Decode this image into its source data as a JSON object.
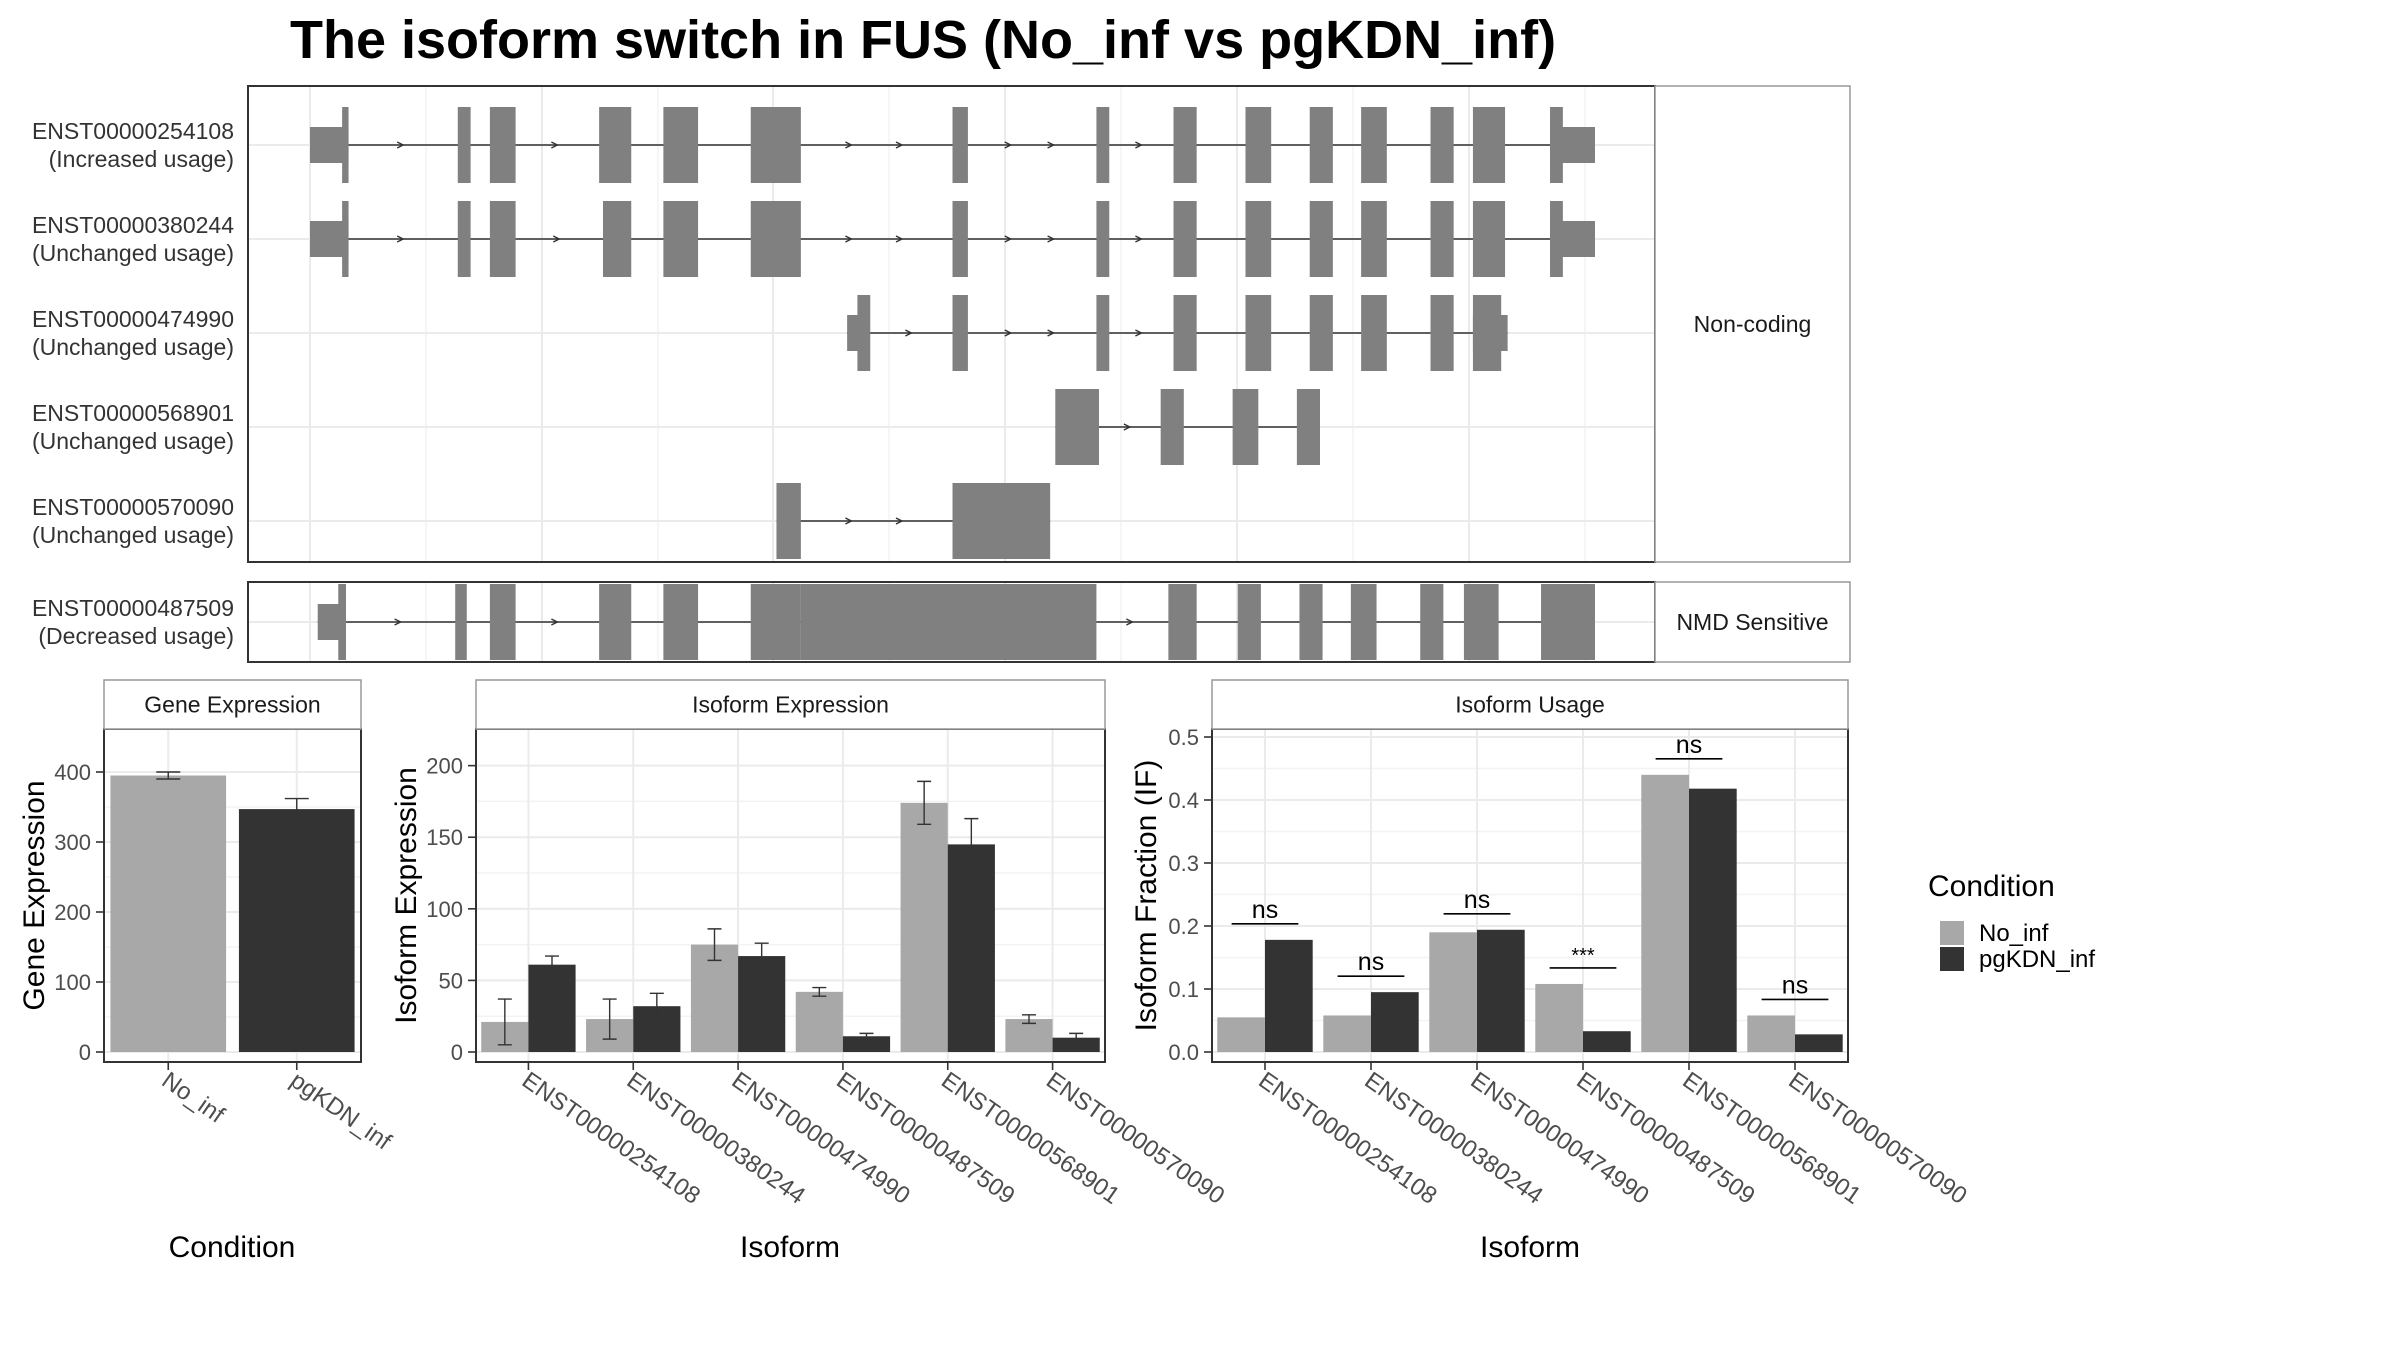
{
  "title": "The isoform switch in FUS (No_inf vs pgKDN_inf)",
  "colors": {
    "no_inf": "#a8a8a8",
    "pgkdn_inf": "#333333",
    "exon": "#808080",
    "grid": "#ebebeb",
    "panel_border": "#333333",
    "strip_border": "#999999"
  },
  "structure": {
    "x_range": [
      0,
      1000
    ],
    "groups": [
      {
        "label": "Non-coding",
        "transcripts": [
          {
            "id": "ENST00000254108",
            "usage": "(Increased usage)",
            "exons": [
              [
                0,
                30,
                "utr"
              ],
              [
                25,
                30,
                "cds"
              ],
              [
                115,
                125,
                "cds"
              ],
              [
                140,
                160,
                "cds"
              ],
              [
                225,
                250,
                "cds"
              ],
              [
                275,
                302,
                "cds"
              ],
              [
                343,
                382,
                "cds"
              ],
              [
                500,
                512,
                "cds"
              ],
              [
                612,
                622,
                "cds"
              ],
              [
                672,
                690,
                "cds"
              ],
              [
                728,
                748,
                "cds"
              ],
              [
                778,
                796,
                "cds"
              ],
              [
                818,
                838,
                "cds"
              ],
              [
                872,
                890,
                "cds"
              ],
              [
                905,
                930,
                "cds"
              ],
              [
                965,
                975,
                "cds"
              ],
              [
                965,
                1000,
                "utr"
              ]
            ]
          },
          {
            "id": "ENST00000380244",
            "usage": "(Unchanged usage)",
            "exons": [
              [
                0,
                30,
                "utr"
              ],
              [
                25,
                30,
                "cds"
              ],
              [
                115,
                125,
                "cds"
              ],
              [
                140,
                160,
                "cds"
              ],
              [
                228,
                250,
                "cds"
              ],
              [
                275,
                302,
                "cds"
              ],
              [
                343,
                382,
                "cds"
              ],
              [
                500,
                512,
                "cds"
              ],
              [
                612,
                622,
                "cds"
              ],
              [
                672,
                690,
                "cds"
              ],
              [
                728,
                748,
                "cds"
              ],
              [
                778,
                796,
                "cds"
              ],
              [
                818,
                838,
                "cds"
              ],
              [
                872,
                890,
                "cds"
              ],
              [
                905,
                930,
                "cds"
              ],
              [
                965,
                975,
                "cds"
              ],
              [
                965,
                1000,
                "utr"
              ]
            ]
          },
          {
            "id": "ENST00000474990",
            "usage": "(Unchanged usage)",
            "exons": [
              [
                418,
                430,
                "utr"
              ],
              [
                426,
                436,
                "cds"
              ],
              [
                500,
                512,
                "cds"
              ],
              [
                612,
                622,
                "cds"
              ],
              [
                672,
                690,
                "cds"
              ],
              [
                728,
                748,
                "cds"
              ],
              [
                778,
                796,
                "cds"
              ],
              [
                818,
                838,
                "cds"
              ],
              [
                872,
                890,
                "cds"
              ],
              [
                905,
                927,
                "cds"
              ],
              [
                905,
                932,
                "utr"
              ]
            ]
          },
          {
            "id": "ENST00000568901",
            "usage": "(Unchanged usage)",
            "exons": [
              [
                580,
                614,
                "cds"
              ],
              [
                662,
                680,
                "cds"
              ],
              [
                718,
                738,
                "cds"
              ],
              [
                768,
                786,
                "cds"
              ]
            ]
          },
          {
            "id": "ENST00000570090",
            "usage": "(Unchanged usage)",
            "exons": [
              [
                363,
                382,
                "cds"
              ],
              [
                500,
                576,
                "cds"
              ]
            ]
          }
        ]
      },
      {
        "label": "NMD Sensitive",
        "transcripts": [
          {
            "id": "ENST00000487509",
            "usage": "(Decreased usage)",
            "exons": [
              [
                6,
                25,
                "utr"
              ],
              [
                22,
                28,
                "cds"
              ],
              [
                113,
                122,
                "cds"
              ],
              [
                140,
                160,
                "cds"
              ],
              [
                225,
                250,
                "cds"
              ],
              [
                275,
                302,
                "cds"
              ],
              [
                343,
                382,
                "cds"
              ],
              [
                382,
                612,
                "nmd"
              ],
              [
                668,
                690,
                "nmd"
              ],
              [
                722,
                740,
                "nmd"
              ],
              [
                770,
                788,
                "nmd"
              ],
              [
                810,
                830,
                "nmd"
              ],
              [
                864,
                882,
                "nmd"
              ],
              [
                898,
                925,
                "nmd"
              ],
              [
                958,
                1000,
                "nmd"
              ]
            ]
          }
        ]
      }
    ]
  },
  "chart_data": [
    {
      "type": "bar",
      "title": "Gene Expression",
      "xlabel": "Condition",
      "ylabel": "Gene Expression",
      "ylim": [
        0,
        450
      ],
      "yticks": [
        0,
        100,
        200,
        300,
        400
      ],
      "categories": [
        "No_inf",
        "pgKDN_inf"
      ],
      "values": [
        395,
        347
      ],
      "error": [
        5,
        15
      ],
      "grid": true
    },
    {
      "type": "bar",
      "title": "Isoform Expression",
      "xlabel": "Isoform",
      "ylabel": "Isoform Expression",
      "ylim": [
        0,
        220
      ],
      "yticks": [
        0,
        50,
        100,
        150,
        200
      ],
      "categories": [
        "ENST00000254108",
        "ENST00000380244",
        "ENST00000474990",
        "ENST00000487509",
        "ENST00000568901",
        "ENST00000570090"
      ],
      "series": [
        {
          "name": "No_inf",
          "values": [
            21,
            23,
            75,
            42,
            174,
            23
          ],
          "error": [
            16,
            14,
            11,
            3,
            15,
            3
          ]
        },
        {
          "name": "pgKDN_inf",
          "values": [
            61,
            32,
            67,
            11,
            145,
            10
          ],
          "error": [
            6,
            9,
            9,
            2,
            18,
            3
          ]
        }
      ],
      "grid": true
    },
    {
      "type": "bar",
      "title": "Isoform Usage",
      "xlabel": "Isoform",
      "ylabel": "Isoform Fraction (IF)",
      "ylim": [
        0,
        0.5
      ],
      "yticks": [
        0.0,
        0.1,
        0.2,
        0.3,
        0.4,
        0.5
      ],
      "categories": [
        "ENST00000254108",
        "ENST00000380244",
        "ENST00000474990",
        "ENST00000487509",
        "ENST00000568901",
        "ENST00000570090"
      ],
      "series": [
        {
          "name": "No_inf",
          "values": [
            0.055,
            0.058,
            0.19,
            0.108,
            0.44,
            0.058
          ]
        },
        {
          "name": "pgKDN_inf",
          "values": [
            0.178,
            0.095,
            0.194,
            0.033,
            0.418,
            0.028
          ]
        }
      ],
      "significance": [
        "ns",
        "ns",
        "ns",
        "***",
        "ns",
        "ns"
      ],
      "grid": true
    }
  ],
  "legend": {
    "title": "Condition",
    "entries": [
      "No_inf",
      "pgKDN_inf"
    ]
  }
}
